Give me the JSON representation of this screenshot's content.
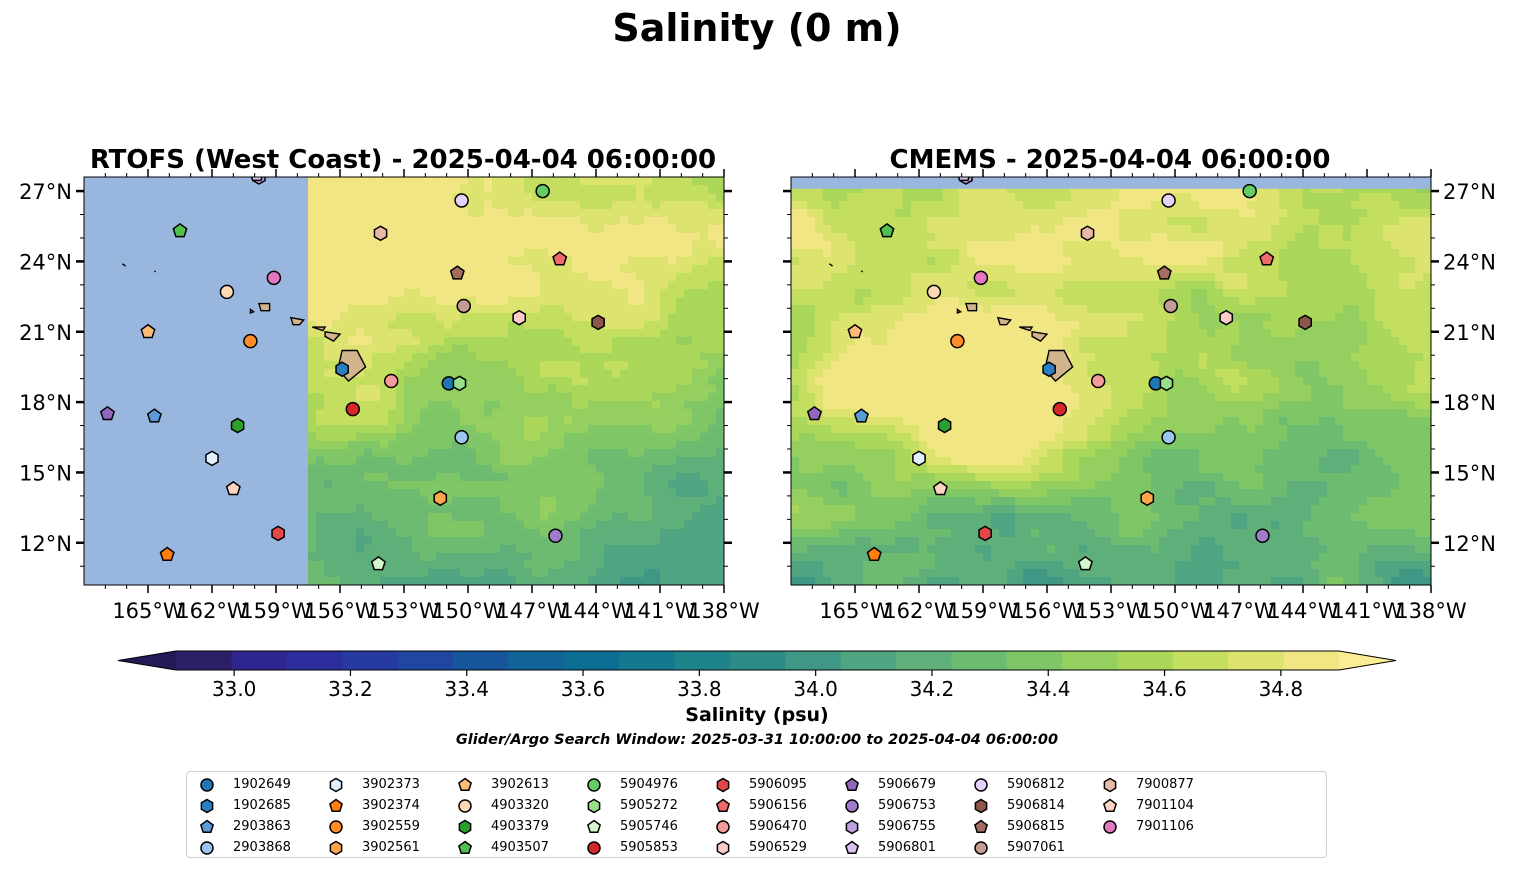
{
  "title": "Salinity (0 m)",
  "panels": [
    {
      "title": "RTOFS (West Coast) - 2025-04-04 06:00:00",
      "model": "RTOFS (West Coast)",
      "date": "2025-04-04 06:00:00"
    },
    {
      "title": "CMEMS - 2025-04-04 06:00:00",
      "model": "CMEMS",
      "date": "2025-04-04 06:00:00"
    }
  ],
  "colorbar": {
    "label": "Salinity (psu)",
    "ticks": [
      "33.0",
      "33.2",
      "33.4",
      "33.6",
      "33.8",
      "34.0",
      "34.2",
      "34.4",
      "34.6",
      "34.8"
    ],
    "vmin": 32.9,
    "vmax": 34.9,
    "extend": "both",
    "colors": [
      "#2c1f66",
      "#2f2591",
      "#2b2e9c",
      "#263aa0",
      "#1f479f",
      "#17569b",
      "#116398",
      "#0d6e94",
      "#137990",
      "#1f838c",
      "#2d8c88",
      "#3e9885",
      "#4fa481",
      "#5eaf7a",
      "#6cbb71",
      "#7fc667",
      "#94cf5f",
      "#aad659",
      "#c4de5f",
      "#dde36f",
      "#f2e684"
    ],
    "under_color": "#241a55",
    "over_color": "#fbed93"
  },
  "search_window": "Glider/Argo Search Window: 2025-03-31 10:00:00 to 2025-04-04 06:00:00",
  "chart_data": {
    "type": "scatter",
    "x_axis": {
      "label": "",
      "range": [
        -168,
        -138
      ],
      "ticks": [
        "165°W",
        "162°W",
        "159°W",
        "156°W",
        "153°W",
        "150°W",
        "147°W",
        "144°W",
        "141°W",
        "138°W"
      ],
      "tick_values": [
        -165,
        -162,
        -159,
        -156,
        -153,
        -150,
        -147,
        -144,
        -141,
        -138
      ]
    },
    "y_axis": {
      "label": "",
      "range": [
        10.2,
        27.6
      ],
      "ticks": [
        "12°N",
        "15°N",
        "18°N",
        "21°N",
        "24°N",
        "27°N"
      ],
      "tick_values": [
        12,
        15,
        18,
        21,
        24,
        27
      ]
    },
    "land_color": "#d2b48c",
    "no_data_color": "#99b6df",
    "series": [
      {
        "name": "1902649",
        "marker": "circle",
        "color": "#1f77b4",
        "lon": -150.9,
        "lat": 18.8
      },
      {
        "name": "1902685",
        "marker": "hexagon",
        "color": "#2a7fc0",
        "lon": -155.9,
        "lat": 19.4
      },
      {
        "name": "2903863",
        "marker": "pentagon",
        "color": "#5b9bd5",
        "lon": -164.7,
        "lat": 17.4
      },
      {
        "name": "2903868",
        "marker": "circle",
        "color": "#9ac6ef",
        "lon": -150.3,
        "lat": 16.5
      },
      {
        "name": "3902373",
        "marker": "hexagon",
        "color": "#e0f0ff",
        "lon": -162.0,
        "lat": 15.6
      },
      {
        "name": "3902374",
        "marker": "pentagon",
        "color": "#ff7f0e",
        "lon": -164.1,
        "lat": 11.5
      },
      {
        "name": "3902559",
        "marker": "circle",
        "color": "#ff8c26",
        "lon": -160.2,
        "lat": 20.6
      },
      {
        "name": "3902561",
        "marker": "hexagon",
        "color": "#ffa64d",
        "lon": -151.3,
        "lat": 13.9
      },
      {
        "name": "3902613",
        "marker": "pentagon",
        "color": "#ffbb78",
        "lon": -165.0,
        "lat": 21.0
      },
      {
        "name": "4903320",
        "marker": "circle",
        "color": "#ffd9b3",
        "lon": -161.3,
        "lat": 22.7
      },
      {
        "name": "4903379",
        "marker": "hexagon",
        "color": "#2ca02c",
        "lon": -160.8,
        "lat": 17.0
      },
      {
        "name": "4903507",
        "marker": "pentagon",
        "color": "#50c04f",
        "lon": -163.5,
        "lat": 25.3
      },
      {
        "name": "5904976",
        "marker": "circle",
        "color": "#66cc66",
        "lon": -146.5,
        "lat": 27.0
      },
      {
        "name": "5905272",
        "marker": "hexagon",
        "color": "#98df8a",
        "lon": -150.4,
        "lat": 18.8
      },
      {
        "name": "5905746",
        "marker": "pentagon",
        "color": "#d4f7cd",
        "lon": -154.2,
        "lat": 11.1
      },
      {
        "name": "5905853",
        "marker": "circle",
        "color": "#d62728",
        "lon": -155.4,
        "lat": 17.7
      },
      {
        "name": "5906095",
        "marker": "hexagon",
        "color": "#e34747",
        "lon": -158.9,
        "lat": 12.4
      },
      {
        "name": "5906156",
        "marker": "pentagon",
        "color": "#ef6a6a",
        "lon": -145.7,
        "lat": 24.1
      },
      {
        "name": "5906470",
        "marker": "circle",
        "color": "#f59a9a",
        "lon": -153.6,
        "lat": 18.9
      },
      {
        "name": "5906529",
        "marker": "hexagon",
        "color": "#ffcccc",
        "lon": -147.6,
        "lat": 21.6
      },
      {
        "name": "5906679",
        "marker": "pentagon",
        "color": "#9467bd",
        "lon": -166.9,
        "lat": 17.5
      },
      {
        "name": "5906753",
        "marker": "circle",
        "color": "#a07cc8",
        "lon": -145.9,
        "lat": 12.3
      },
      {
        "name": "5906755",
        "marker": "hexagon",
        "color": "#bea0e0",
        "lon": -159.8,
        "lat": 27.6
      },
      {
        "name": "5906801",
        "marker": "pentagon",
        "color": "#d6c3ee",
        "lon": -159.9,
        "lat": 27.7
      },
      {
        "name": "5906812",
        "marker": "circle",
        "color": "#e3d2f7",
        "lon": -150.3,
        "lat": 26.6
      },
      {
        "name": "5906814",
        "marker": "hexagon",
        "color": "#8c564b",
        "lon": -143.9,
        "lat": 21.4
      },
      {
        "name": "5906815",
        "marker": "pentagon",
        "color": "#a56d5f",
        "lon": -150.5,
        "lat": 23.5
      },
      {
        "name": "5907061",
        "marker": "circle",
        "color": "#c49c94",
        "lon": -150.2,
        "lat": 22.1
      },
      {
        "name": "7900877",
        "marker": "hexagon",
        "color": "#e8b9a8",
        "lon": -154.1,
        "lat": 25.2
      },
      {
        "name": "7901104",
        "marker": "pentagon",
        "color": "#ffd3c2",
        "lon": -161.0,
        "lat": 14.3
      },
      {
        "name": "7901106",
        "marker": "circle",
        "color": "#e377c2",
        "lon": -159.1,
        "lat": 23.3
      }
    ]
  }
}
